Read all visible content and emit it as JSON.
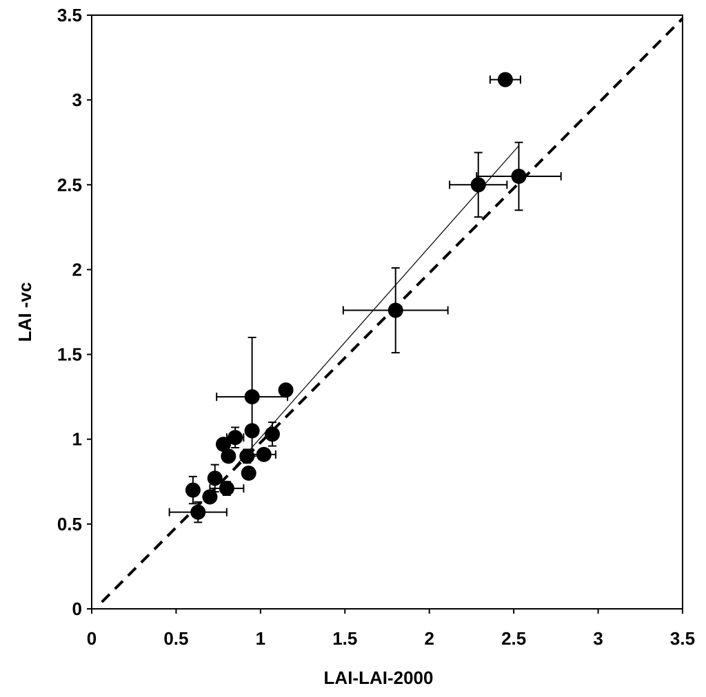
{
  "chart_data": {
    "type": "scatter",
    "title": "",
    "xlabel": "LAI-LAI-2000",
    "ylabel": "LAI -vc",
    "xlim": [
      0,
      3.5
    ],
    "ylim": [
      0,
      3.5
    ],
    "xticks": [
      "0",
      "0.5",
      "1",
      "1.5",
      "2",
      "2.5",
      "3",
      "3.5"
    ],
    "yticks": [
      "0",
      "0.5",
      "1",
      "1.5",
      "2",
      "2.5",
      "3",
      "3.5"
    ],
    "grid": false,
    "legend": "none",
    "marker_color": "#000000",
    "points": [
      {
        "x": 0.6,
        "y": 0.7,
        "xerr": 0,
        "yerr": 0.08
      },
      {
        "x": 0.63,
        "y": 0.57,
        "xerr": 0.17,
        "yerr": 0.06
      },
      {
        "x": 0.7,
        "y": 0.66,
        "xerr": 0.03,
        "yerr": 0.03
      },
      {
        "x": 0.73,
        "y": 0.77,
        "xerr": 0.03,
        "yerr": 0.08
      },
      {
        "x": 0.8,
        "y": 0.71,
        "xerr": 0.1,
        "yerr": 0.04
      },
      {
        "x": 0.78,
        "y": 0.97,
        "xerr": 0.03,
        "yerr": 0.03
      },
      {
        "x": 0.81,
        "y": 0.9,
        "xerr": 0.03,
        "yerr": 0.03
      },
      {
        "x": 0.85,
        "y": 1.01,
        "xerr": 0.05,
        "yerr": 0.06
      },
      {
        "x": 0.92,
        "y": 0.9,
        "xerr": 0.03,
        "yerr": 0.04
      },
      {
        "x": 0.93,
        "y": 0.8,
        "xerr": 0.02,
        "yerr": 0.03
      },
      {
        "x": 0.95,
        "y": 1.05,
        "xerr": 0.02,
        "yerr": 0.03
      },
      {
        "x": 0.95,
        "y": 1.25,
        "xerr": 0.21,
        "yerr": 0.35
      },
      {
        "x": 1.02,
        "y": 0.91,
        "xerr": 0.07,
        "yerr": 0.03
      },
      {
        "x": 1.07,
        "y": 1.03,
        "xerr": 0.03,
        "yerr": 0.07
      },
      {
        "x": 1.15,
        "y": 1.29,
        "xerr": 0.02,
        "yerr": 0.02
      },
      {
        "x": 1.8,
        "y": 1.76,
        "xerr": 0.31,
        "yerr": 0.25
      },
      {
        "x": 2.29,
        "y": 2.5,
        "xerr": 0.17,
        "yerr": 0.19
      },
      {
        "x": 2.53,
        "y": 2.55,
        "xerr": 0.25,
        "yerr": 0.2
      },
      {
        "x": 2.45,
        "y": 3.12,
        "xerr": 0.09,
        "yerr": 0.02
      }
    ],
    "lines": [
      {
        "kind": "one-to-one",
        "style": "dashed",
        "x": [
          0.06,
          3.5
        ],
        "y": [
          0.04,
          3.48
        ]
      },
      {
        "kind": "regression",
        "style": "solid-thin",
        "x": [
          0.85,
          2.53
        ],
        "y": [
          0.84,
          2.73
        ]
      }
    ]
  }
}
